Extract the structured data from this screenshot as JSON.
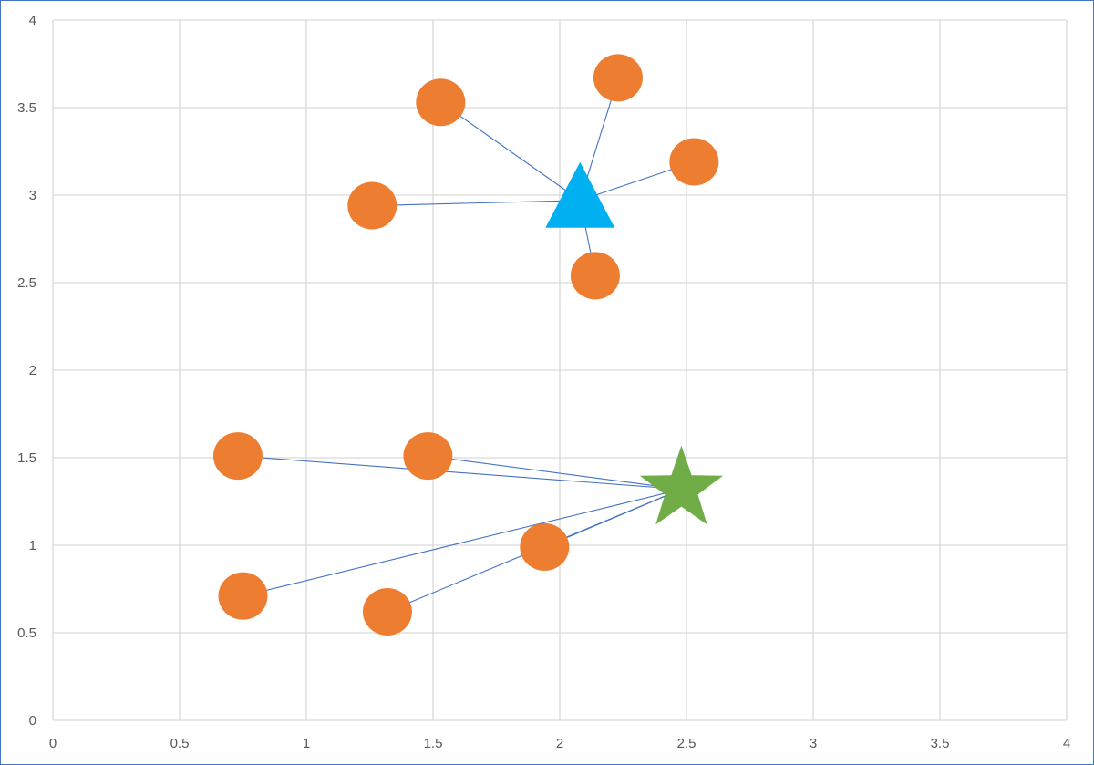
{
  "chart_data": {
    "type": "scatter",
    "title": "",
    "xlabel": "",
    "ylabel": "",
    "xlim": [
      0,
      4
    ],
    "ylim": [
      0,
      4
    ],
    "grid": true,
    "x_ticks": [
      "0",
      "0.5",
      "1",
      "1.5",
      "2",
      "2.5",
      "3",
      "3.5",
      "4"
    ],
    "y_ticks": [
      "0",
      "0.5",
      "1",
      "1.5",
      "2",
      "2.5",
      "3",
      "3.5",
      "4"
    ],
    "colors": {
      "points": "#ed7d31",
      "centroid_triangle": "#00b0f0",
      "centroid_star": "#70ad47",
      "lines": "#4472c4",
      "grid": "#d9d9d9",
      "frame": "#4472c4"
    },
    "clusters": [
      {
        "marker": "triangle",
        "center": [
          2.08,
          2.97
        ],
        "points": [
          [
            1.53,
            3.53
          ],
          [
            2.23,
            3.67
          ],
          [
            2.53,
            3.19
          ],
          [
            1.26,
            2.94
          ],
          [
            2.14,
            2.54
          ]
        ]
      },
      {
        "marker": "star",
        "center": [
          2.48,
          1.32
        ],
        "points": [
          [
            0.73,
            1.51
          ],
          [
            1.48,
            1.51
          ],
          [
            1.94,
            0.99
          ],
          [
            0.75,
            0.71
          ],
          [
            1.32,
            0.62
          ]
        ]
      }
    ]
  }
}
